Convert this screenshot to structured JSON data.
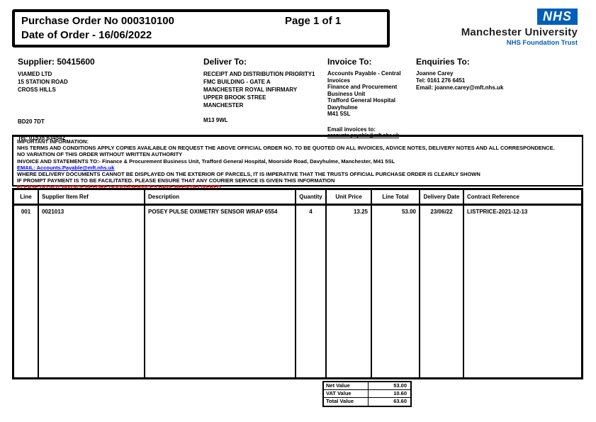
{
  "colors": {
    "nhs_blue": "#005EB8",
    "link_blue": "#0000FF",
    "alert_red": "#FF0000"
  },
  "header": {
    "po_number": "Purchase Order No 000310100",
    "page": "Page 1 of 1",
    "date_line": "Date of Order - 16/06/2022"
  },
  "logo": {
    "nhs": "NHS",
    "org": "Manchester University",
    "trust": "NHS Foundation Trust"
  },
  "supplier": {
    "title": "Supplier: 50415600",
    "address": [
      "VIAMED LTD",
      "15 STATION ROAD",
      "CROSS HILLS"
    ],
    "postcode": "BD20 7DT",
    "tel": "Tel: 01535 634542"
  },
  "deliver_to": {
    "title": "Deliver To:",
    "lines": [
      "RECEIPT AND DISTRIBUTION PRIORITY1",
      "FMC BUILDING - GATE A",
      "MANCHESTER ROYAL INFIRMARY",
      "UPPER BROOK STREE",
      "MANCHESTER"
    ],
    "postcode": "M13 9WL"
  },
  "invoice_to": {
    "title": "Invoice To:",
    "lines": [
      "Accounts Payable - Central",
      "Invoices",
      "Finance and Procurement",
      "Business Unit",
      "Trafford General Hospital",
      "Davyhulme",
      "M41 5SL"
    ],
    "email_label": "Email invoices to:",
    "email": "accounts.payable@mft.nhs.uk"
  },
  "enquiries": {
    "title": "Enquiries To:",
    "name": "Joanne Carey",
    "tel": "Tel: 0161 276 6451",
    "email": "Email: joanne.carey@mft.nhs.uk"
  },
  "important": {
    "title": "IMPORTANT INFORMATION:",
    "terms": "NHS TERMS AND CONDITIONS APPLY COPIES AVAILABLE ON REQUEST THE ABOVE OFFICIAL ORDER NO. TO BE QUOTED ON ALL INVOICES, ADVICE NOTES, DELIVERY NOTES AND ALL CORRESPONDENCE.",
    "variation": "NO VARIATION OF THIS ORDER WITHOUT WRITTEN AUTHORITY",
    "invoice_statements": "INVOICE AND STATEMENTS TO:- Finance & Procurement Business Unit, Trafford General Hospital, Moorside Road, Davyhulme, Manchester, M41 5SL",
    "email_link": "EMAIL: Accounts.Payable@mft.nhs.uk",
    "delivery_docs": "WHERE DELIVERY DOCUMENTS CANNOT BE DISPLAYED ON THE EXTERIOR OF PARCELS, IT IS IMPERATIVE THAT THE TRUSTS OFFICIAL PURCHASE ORDER IS CLEARLY SHOWN",
    "prompt_payment": "IF PROMPT PAYMENT IS TO BE FACILITATED. PLEASE ENSURE THAT ANY COURIER SERVICE IS GIVEN THIS INFORMATION",
    "do_not_invoice": "PLEASE DO NOT INVOICE BEFORE GOODS/SERVICES HAVE BEEN DELIVERED"
  },
  "table": {
    "headers": [
      "Line",
      "Supplier Item Ref",
      "Description",
      "Quantity",
      "Unit Price",
      "Line Total",
      "Delivery Date",
      "Contract Reference"
    ],
    "rows": [
      {
        "line": "001",
        "ref": "0021013",
        "description": "POSEY PULSE OXIMETRY SENSOR WRAP 6554",
        "qty": "4",
        "unit_price": "13.25",
        "line_total": "53.00",
        "delivery_date": "23/06/22",
        "contract_ref": "LISTPRICE-2021-12-13"
      }
    ]
  },
  "totals": {
    "rows": [
      {
        "label": "Net Value",
        "value": "53.00"
      },
      {
        "label": "VAT Value",
        "value": "10.60"
      },
      {
        "label": "Total Value",
        "value": "63.60"
      }
    ]
  }
}
